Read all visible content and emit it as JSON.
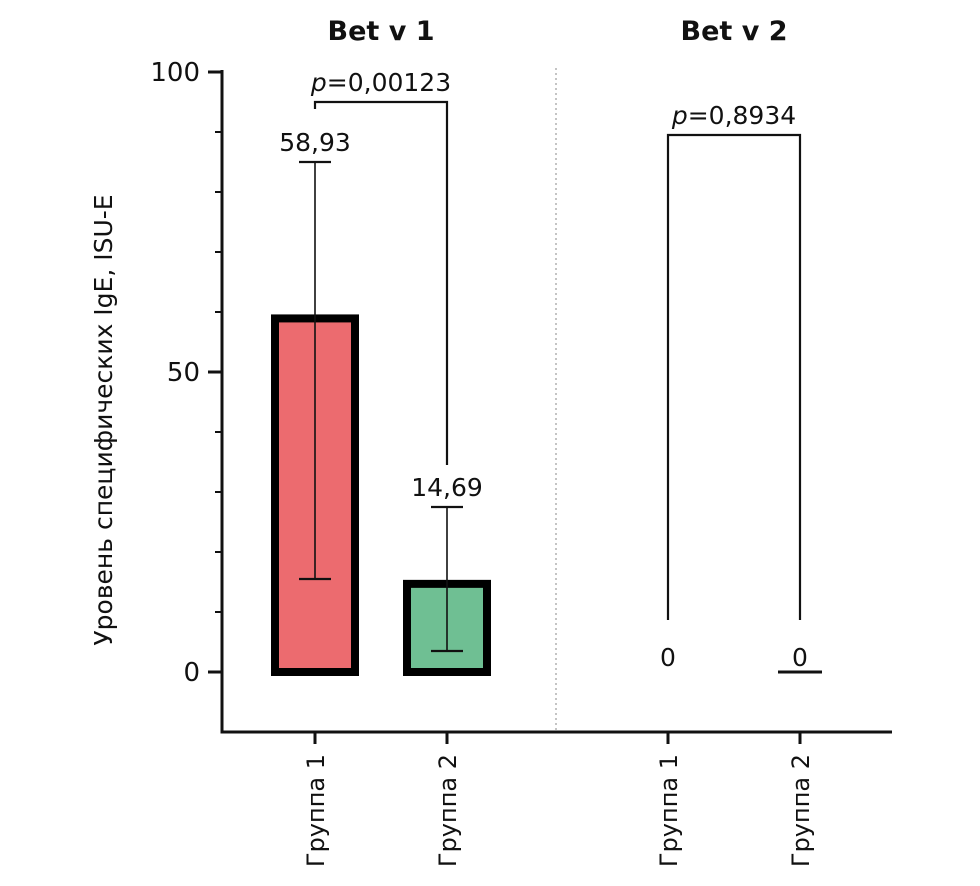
{
  "chart_data": {
    "type": "bar",
    "ylabel": "Уровень специфических IgE, ISU-E",
    "ylim": [
      -10,
      100
    ],
    "yticks": [
      0,
      50,
      100
    ],
    "ytick_labels": [
      "0",
      "50",
      "100"
    ],
    "panels": [
      {
        "title": "Bet v 1",
        "categories": [
          "Группа 1",
          "Группа 2"
        ],
        "values": [
          58.93,
          14.69
        ],
        "value_labels": [
          "58,93",
          "14,69"
        ],
        "error_low": [
          15.5,
          3.5
        ],
        "error_high": [
          85,
          27.5
        ],
        "colors": [
          "#ec6b6f",
          "#6fbf93"
        ],
        "comparison": {
          "p_prefix": "p",
          "p_value": "=0,00123",
          "bracket_y": 95
        }
      },
      {
        "title": "Bet v 2",
        "categories": [
          "Группа 1",
          "Группа 2"
        ],
        "values": [
          0,
          0
        ],
        "value_labels": [
          "0",
          "0"
        ],
        "error_low": [
          0,
          0
        ],
        "error_high": [
          0,
          0
        ],
        "colors": [
          "#ec6b6f",
          "#6fbf93"
        ],
        "comparison": {
          "p_prefix": "p",
          "p_value": "=0,8934",
          "bracket_y": 89.5
        }
      }
    ],
    "grid": false,
    "legend": "none"
  }
}
